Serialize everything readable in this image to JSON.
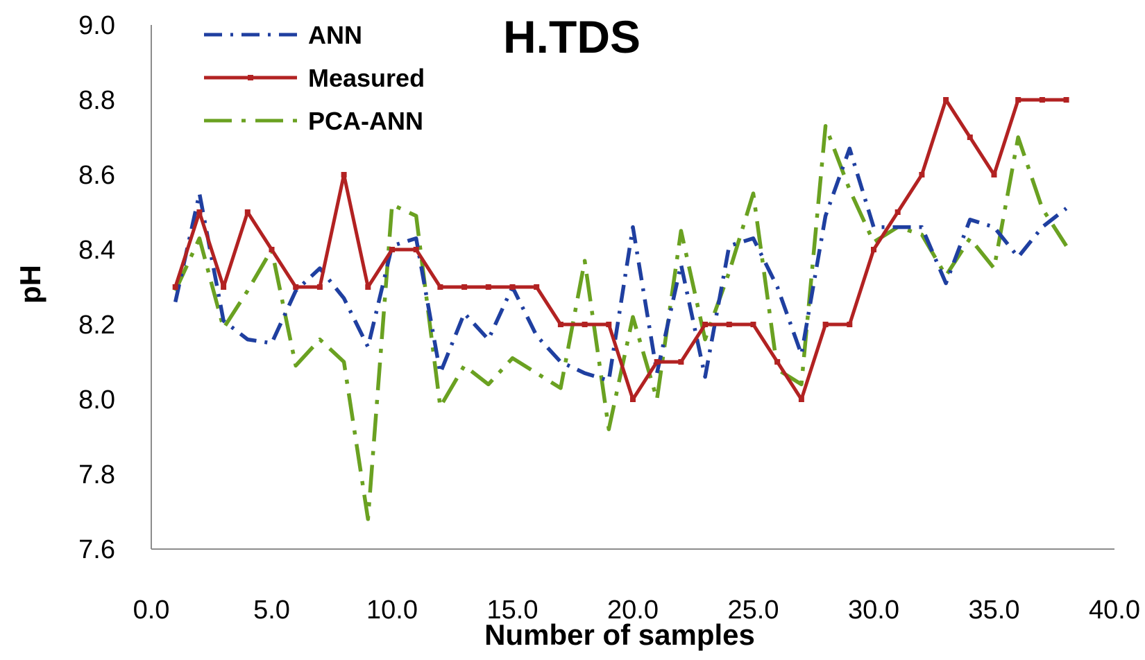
{
  "chart_data": {
    "type": "line",
    "title": "H.TDS",
    "xlabel": "Number of samples",
    "ylabel": "pH",
    "xlim": [
      0,
      40
    ],
    "ylim": [
      7.6,
      9.0
    ],
    "x_ticks": [
      "0.0",
      "5.0",
      "10.0",
      "15.0",
      "20.0",
      "25.0",
      "30.0",
      "35.0",
      "40.0"
    ],
    "y_ticks": [
      "7.6",
      "7.8",
      "8.0",
      "8.2",
      "8.4",
      "8.6",
      "8.8",
      "9.0"
    ],
    "grid": false,
    "legend_position": "top-left",
    "x": [
      1,
      2,
      3,
      4,
      5,
      6,
      7,
      8,
      9,
      10,
      11,
      12,
      13,
      14,
      15,
      16,
      17,
      18,
      19,
      20,
      21,
      22,
      23,
      24,
      25,
      26,
      27,
      28,
      29,
      30,
      31,
      32,
      33,
      34,
      35,
      36,
      37,
      38
    ],
    "series": [
      {
        "name": "ANN",
        "color": "#1f3fa0",
        "style": "dash-dot",
        "values": [
          8.26,
          8.55,
          8.21,
          8.16,
          8.15,
          8.29,
          8.35,
          8.27,
          8.14,
          8.41,
          8.43,
          8.07,
          8.23,
          8.16,
          8.3,
          8.17,
          8.1,
          8.07,
          8.05,
          8.46,
          8.07,
          8.36,
          8.06,
          8.41,
          8.43,
          8.3,
          8.12,
          8.49,
          8.67,
          8.46,
          8.46,
          8.46,
          8.31,
          8.48,
          8.46,
          8.38,
          8.46,
          8.51
        ]
      },
      {
        "name": "Measured",
        "color": "#b22222",
        "style": "solid",
        "values": [
          8.3,
          8.5,
          8.3,
          8.5,
          8.4,
          8.3,
          8.3,
          8.6,
          8.3,
          8.4,
          8.4,
          8.3,
          8.3,
          8.3,
          8.3,
          8.3,
          8.2,
          8.2,
          8.2,
          8.0,
          8.1,
          8.1,
          8.2,
          8.2,
          8.2,
          8.1,
          8.0,
          8.2,
          8.2,
          8.4,
          8.5,
          8.6,
          8.8,
          8.7,
          8.6,
          8.8,
          8.8,
          8.8
        ]
      },
      {
        "name": "PCA-ANN",
        "color": "#6aa121",
        "style": "long-dash",
        "values": [
          8.29,
          8.43,
          8.19,
          8.29,
          8.4,
          8.09,
          8.16,
          8.1,
          7.68,
          8.52,
          8.49,
          7.98,
          8.09,
          8.04,
          8.11,
          8.07,
          8.03,
          8.37,
          7.92,
          8.22,
          8.0,
          8.45,
          8.16,
          8.34,
          8.55,
          8.08,
          8.04,
          8.73,
          8.56,
          8.42,
          8.46,
          8.44,
          8.33,
          8.43,
          8.35,
          8.7,
          8.51,
          8.41
        ]
      }
    ]
  }
}
